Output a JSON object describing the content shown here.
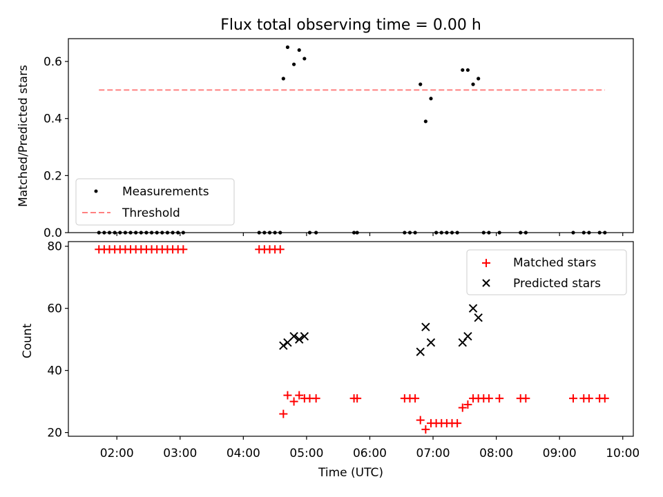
{
  "chart_data": [
    {
      "type": "scatter",
      "title": "Flux total observing time = 0.00 h",
      "ylabel": "Matched/Predicted stars",
      "xlim": [
        "01:14",
        "10:10"
      ],
      "ylim": [
        0,
        0.68
      ],
      "yticks": [
        0.0,
        0.2,
        0.4,
        0.6
      ],
      "ytick_labels": [
        "0.0",
        "0.2",
        "0.4",
        "0.6"
      ],
      "legend_position": "lower-left",
      "series": [
        {
          "name": "Measurements",
          "kind": "points",
          "color": "#000000",
          "x": [
            "01:43",
            "01:48",
            "01:53",
            "01:58",
            "02:03",
            "02:08",
            "02:13",
            "02:18",
            "02:23",
            "02:28",
            "02:33",
            "02:38",
            "02:43",
            "02:48",
            "02:53",
            "02:58",
            "03:03",
            "04:15",
            "04:20",
            "04:25",
            "04:30",
            "04:35",
            "04:38",
            "04:42",
            "04:48",
            "04:53",
            "04:58",
            "05:03",
            "05:09",
            "05:45",
            "05:48",
            "06:33",
            "06:38",
            "06:43",
            "06:48",
            "06:53",
            "06:58",
            "07:03",
            "07:08",
            "07:13",
            "07:18",
            "07:23",
            "07:28",
            "07:33",
            "07:38",
            "07:43",
            "07:48",
            "07:53",
            "08:03",
            "08:23",
            "08:28",
            "09:13",
            "09:23",
            "09:28",
            "09:38",
            "09:43"
          ],
          "y": [
            0,
            0,
            0,
            0,
            0,
            0,
            0,
            0,
            0,
            0,
            0,
            0,
            0,
            0,
            0,
            0,
            0,
            0,
            0,
            0,
            0,
            0,
            0.54,
            0.65,
            0.59,
            0.64,
            0.61,
            0,
            0,
            0,
            0,
            0,
            0,
            0,
            0.52,
            0.39,
            0.47,
            0,
            0,
            0,
            0,
            0,
            0.57,
            0.57,
            0.52,
            0.54,
            0,
            0,
            0,
            0,
            0,
            0,
            0,
            0,
            0,
            0
          ]
        },
        {
          "name": "Threshold",
          "kind": "line",
          "color": "#ff8080",
          "x": [
            "01:43",
            "09:43"
          ],
          "y": [
            0.5,
            0.5
          ]
        }
      ]
    },
    {
      "type": "scatter",
      "xlabel": "Time (UTC)",
      "ylabel": "Count",
      "xlim": [
        "01:14",
        "10:10"
      ],
      "ylim": [
        18.8,
        81.5
      ],
      "xticks": [
        "02:00",
        "03:00",
        "04:00",
        "05:00",
        "06:00",
        "07:00",
        "08:00",
        "09:00",
        "10:00"
      ],
      "yticks": [
        20,
        40,
        60,
        80
      ],
      "ytick_labels": [
        "20",
        "40",
        "60",
        "80"
      ],
      "legend_position": "upper-right",
      "series": [
        {
          "name": "Matched stars",
          "marker": "plus",
          "color": "#ff0000",
          "x": [
            "01:43",
            "01:48",
            "01:53",
            "01:58",
            "02:03",
            "02:08",
            "02:13",
            "02:18",
            "02:23",
            "02:28",
            "02:33",
            "02:38",
            "02:43",
            "02:48",
            "02:53",
            "02:58",
            "03:03",
            "04:15",
            "04:20",
            "04:25",
            "04:30",
            "04:35",
            "04:38",
            "04:42",
            "04:48",
            "04:53",
            "04:58",
            "05:03",
            "05:09",
            "05:45",
            "05:48",
            "06:33",
            "06:38",
            "06:43",
            "06:48",
            "06:53",
            "06:58",
            "07:03",
            "07:08",
            "07:13",
            "07:18",
            "07:23",
            "07:28",
            "07:33",
            "07:38",
            "07:43",
            "07:48",
            "07:53",
            "08:03",
            "08:23",
            "08:28",
            "09:13",
            "09:23",
            "09:28",
            "09:38",
            "09:43"
          ],
          "y": [
            79,
            79,
            79,
            79,
            79,
            79,
            79,
            79,
            79,
            79,
            79,
            79,
            79,
            79,
            79,
            79,
            79,
            79,
            79,
            79,
            79,
            79,
            26,
            32,
            30,
            32,
            31,
            31,
            31,
            31,
            31,
            31,
            31,
            31,
            24,
            21,
            23,
            23,
            23,
            23,
            23,
            23,
            28,
            29,
            31,
            31,
            31,
            31,
            31,
            31,
            31,
            31,
            31,
            31,
            31,
            31
          ]
        },
        {
          "name": "Predicted stars",
          "marker": "x",
          "color": "#000000",
          "x": [
            "04:38",
            "04:42",
            "04:48",
            "04:53",
            "04:58",
            "06:48",
            "06:53",
            "06:58",
            "07:28",
            "07:33",
            "07:38",
            "07:43"
          ],
          "y": [
            48,
            49,
            51,
            50,
            51,
            46,
            54,
            49,
            49,
            51,
            60,
            57
          ]
        }
      ]
    }
  ]
}
